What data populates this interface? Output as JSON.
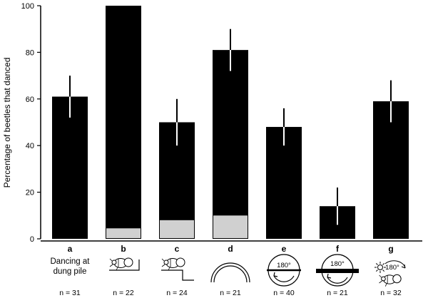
{
  "chart_data": {
    "type": "bar",
    "ylabel": "Percentage of beetles that danced",
    "ylim": [
      0,
      100
    ],
    "yticks": [
      0,
      20,
      40,
      60,
      80,
      100
    ],
    "categories": [
      "a",
      "b",
      "c",
      "d",
      "e",
      "f",
      "g"
    ],
    "values": [
      61,
      100,
      50,
      81,
      48,
      14,
      59
    ],
    "base_values": [
      0,
      4.5,
      8,
      10,
      0,
      0,
      0
    ],
    "errors": [
      9,
      0,
      10,
      9,
      8,
      8,
      9
    ],
    "n_labels": [
      "n = 31",
      "n = 22",
      "n = 24",
      "n = 21",
      "n = 40",
      "n = 21",
      "n = 32"
    ],
    "sublabels": {
      "a": [
        "Dancing at",
        "dung pile"
      ]
    },
    "icons": [
      "",
      "beetle-on-ledge-icon",
      "beetle-on-step-icon",
      "semicircle-arch-icon",
      "circle-arrow-180-icon",
      "bar-rotated-180-icon",
      "sun-beetle-180-icon"
    ],
    "degree_label": "180°",
    "colors": {
      "bar": "#000000",
      "base": "#d0d0d0",
      "error_on_bar": "#ffffff",
      "error_above": "#000000"
    }
  }
}
